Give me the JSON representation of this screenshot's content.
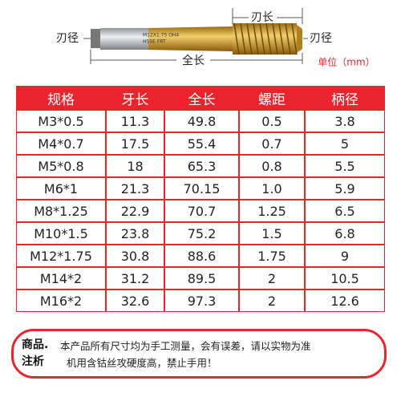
{
  "diagram": {
    "blade_length": "刃长",
    "blade_diameter_left": "刃径",
    "blade_diameter_right": "刃径",
    "total_length": "全长",
    "unit": "单位（mm）",
    "engraving_1": "M12X1.75 OH4",
    "engraving_2": "HSSE  FRT"
  },
  "table": {
    "header": [
      "规格",
      "牙长",
      "全长",
      "螺距",
      "柄径"
    ],
    "rows": [
      [
        "M3*0.5",
        "11.3",
        "49.8",
        "0.5",
        "3.8"
      ],
      [
        "M4*0.7",
        "17.5",
        "55.4",
        "0.7",
        "5"
      ],
      [
        "M5*0.8",
        "18",
        "65.3",
        "0.8",
        "5.5"
      ],
      [
        "M6*1",
        "21.3",
        "70.15",
        "1.0",
        "5.9"
      ],
      [
        "M8*1.25",
        "22.9",
        "70.7",
        "1.25",
        "6.5"
      ],
      [
        "M10*1.5",
        "23.8",
        "75.2",
        "1.5",
        "6.8"
      ],
      [
        "M12*1.75",
        "30.8",
        "88.6",
        "1.75",
        "9"
      ],
      [
        "M14*2",
        "31.2",
        "89.5",
        "2",
        "10.5"
      ],
      [
        "M16*2",
        "32.6",
        "97.3",
        "2",
        "12.6"
      ]
    ]
  },
  "note": {
    "label_1": "商品.",
    "label_2": "注析",
    "line_1": "本产品所有尺寸均为手工测量，会有误差，请以实物为准",
    "line_2": "机用含钴丝攻硬度高，禁止手用！"
  }
}
